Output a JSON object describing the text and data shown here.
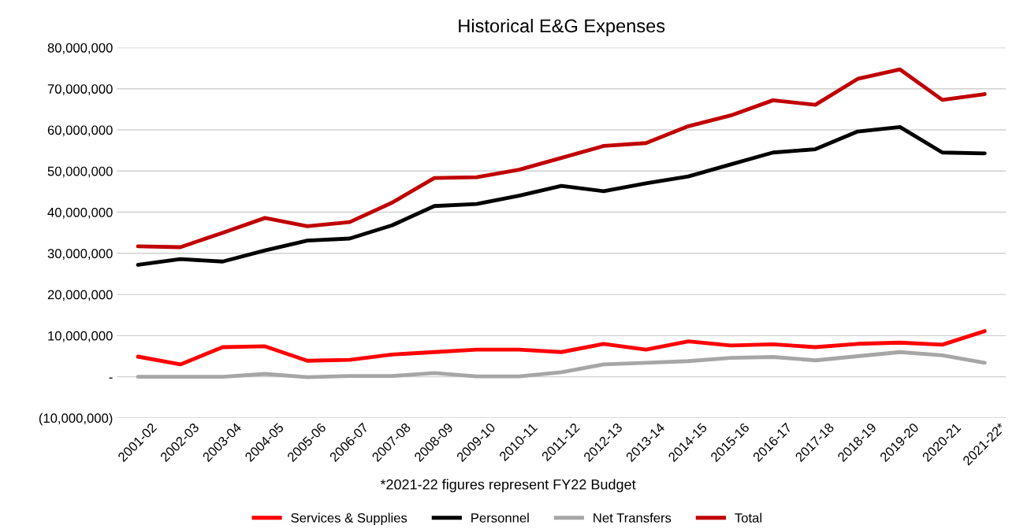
{
  "chart_data": {
    "type": "line",
    "title": "Historical E&G Expenses",
    "categories": [
      "2001-02",
      "2002-03",
      "2003-04",
      "2004-05",
      "2005-06",
      "2006-07",
      "2007-08",
      "2008-09",
      "2009-10",
      "2010-11",
      "2011-12",
      "2012-13",
      "2013-14",
      "2014-15",
      "2015-16",
      "2016-17",
      "2017-18",
      "2018-19",
      "2019-20",
      "2020-21",
      "2021-22*"
    ],
    "series": [
      {
        "name": "Services & Supplies",
        "color": "#ff0000",
        "values": [
          4900000,
          3000000,
          7200000,
          7400000,
          3900000,
          4100000,
          5400000,
          6000000,
          6600000,
          6600000,
          6000000,
          8000000,
          6600000,
          8600000,
          7600000,
          7900000,
          7200000,
          8000000,
          8300000,
          7800000,
          11100000
        ]
      },
      {
        "name": "Personnel",
        "color": "#000000",
        "values": [
          27200000,
          28600000,
          28000000,
          30700000,
          33100000,
          33600000,
          36800000,
          41500000,
          42000000,
          44000000,
          46400000,
          45100000,
          47000000,
          48700000,
          51600000,
          54500000,
          55300000,
          59600000,
          60700000,
          54500000,
          54300000
        ]
      },
      {
        "name": "Net Transfers",
        "color": "#a6a6a6",
        "values": [
          0,
          0,
          0,
          700000,
          -100000,
          200000,
          200000,
          900000,
          100000,
          100000,
          1100000,
          3000000,
          3400000,
          3800000,
          4600000,
          4800000,
          4000000,
          5000000,
          6000000,
          5200000,
          3400000
        ]
      },
      {
        "name": "Total",
        "color": "#c00000",
        "values": [
          31700000,
          31500000,
          35000000,
          38600000,
          36600000,
          37600000,
          42300000,
          48300000,
          48500000,
          50300000,
          53200000,
          56100000,
          56800000,
          60900000,
          63500000,
          67200000,
          66100000,
          72400000,
          74700000,
          67300000,
          68700000
        ]
      }
    ],
    "ylim": [
      -10000000,
      80000000
    ],
    "yticks": [
      {
        "value": -10000000,
        "label": "(10,000,000)"
      },
      {
        "value": 0,
        "label": "-"
      },
      {
        "value": 10000000,
        "label": "10,000,000"
      },
      {
        "value": 20000000,
        "label": "20,000,000"
      },
      {
        "value": 30000000,
        "label": "30,000,000"
      },
      {
        "value": 40000000,
        "label": "40,000,000"
      },
      {
        "value": 50000000,
        "label": "50,000,000"
      },
      {
        "value": 60000000,
        "label": "60,000,000"
      },
      {
        "value": 70000000,
        "label": "70,000,000"
      },
      {
        "value": 80000000,
        "label": "80,000,000"
      }
    ],
    "grid": "y",
    "legend": "bottom",
    "marker": "none",
    "line_style": "solid",
    "annotations": [
      "*2021-22 figures represent FY22 Budget"
    ]
  }
}
